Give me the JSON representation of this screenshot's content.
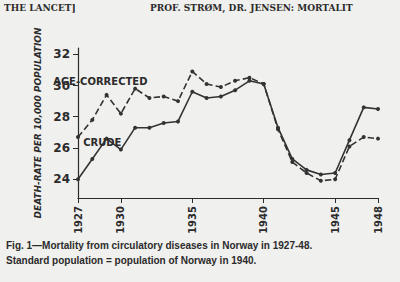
{
  "header": {
    "left": "THE LANCET]",
    "right": "PROF. STRØM, DR. JENSEN: MORTALIT"
  },
  "chart_data": {
    "type": "line",
    "y_label": "DEATH-RATE PER 10,000 POPULATION",
    "caption": [
      "Fig. 1—Mortality from circulatory diseases in Norway in 1927-48.",
      "Standard population = population of Norway in 1940."
    ],
    "x": [
      1927,
      1928,
      1929,
      1930,
      1931,
      1932,
      1933,
      1934,
      1935,
      1936,
      1937,
      1938,
      1939,
      1940,
      1941,
      1942,
      1943,
      1944,
      1945,
      1946,
      1947,
      1948
    ],
    "series": [
      {
        "name": "AGE-CORRECTED",
        "color": "#333333",
        "line_style": "dashed",
        "marker": "circle",
        "values": [
          26.7,
          27.8,
          29.4,
          28.2,
          29.8,
          29.2,
          29.3,
          29.0,
          30.9,
          30.1,
          29.9,
          30.3,
          30.5,
          30.1,
          27.2,
          25.1,
          24.4,
          23.9,
          24.0,
          26.1,
          26.7,
          26.6
        ]
      },
      {
        "name": "CRUDE",
        "color": "#333333",
        "line_style": "solid",
        "marker": "circle",
        "values": [
          24.0,
          25.3,
          26.6,
          25.9,
          27.3,
          27.3,
          27.6,
          27.7,
          29.6,
          29.2,
          29.3,
          29.7,
          30.3,
          30.1,
          27.3,
          25.3,
          24.6,
          24.3,
          24.4,
          26.5,
          28.6,
          28.5
        ]
      }
    ],
    "xlim": [
      1927,
      1948
    ],
    "xticks": [
      1927,
      1930,
      1935,
      1940,
      1945,
      1948
    ],
    "ylim": [
      22.8,
      32.4
    ],
    "yticks": [
      24,
      26,
      28,
      30,
      32
    ],
    "grid": false
  }
}
